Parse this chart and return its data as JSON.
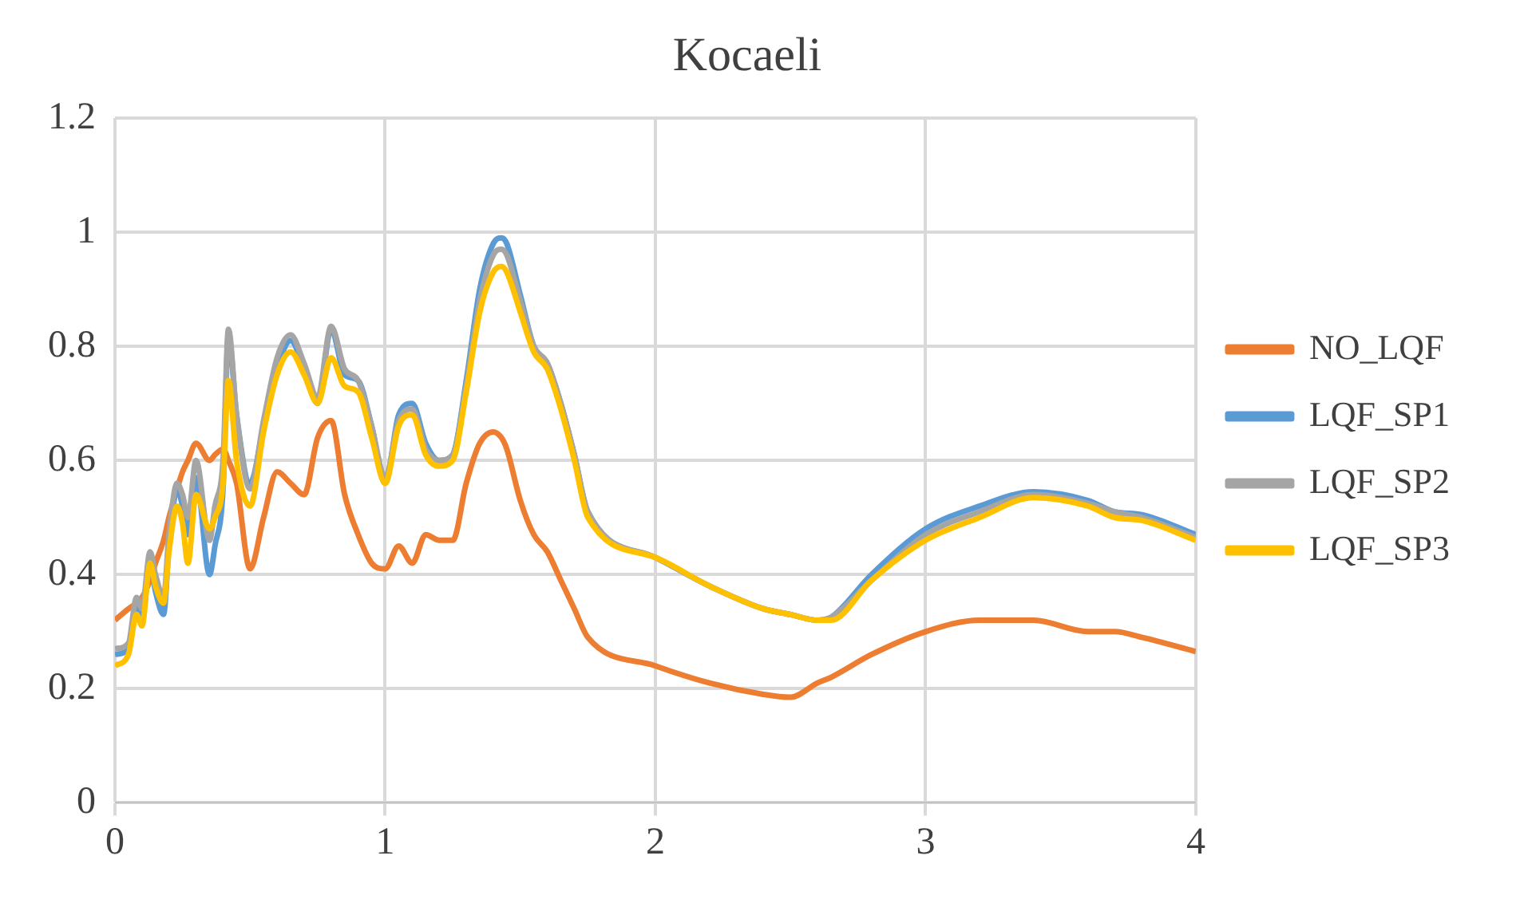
{
  "chart_data": {
    "type": "line",
    "title": "Kocaeli",
    "x": [
      0,
      0.05,
      0.08,
      0.1,
      0.13,
      0.15,
      0.18,
      0.2,
      0.23,
      0.25,
      0.27,
      0.3,
      0.35,
      0.37,
      0.4,
      0.42,
      0.45,
      0.5,
      0.55,
      0.6,
      0.65,
      0.7,
      0.75,
      0.8,
      0.85,
      0.9,
      0.95,
      1.0,
      1.05,
      1.1,
      1.15,
      1.2,
      1.25,
      1.3,
      1.35,
      1.4,
      1.43,
      1.45,
      1.5,
      1.55,
      1.6,
      1.65,
      1.7,
      1.75,
      2.0,
      2.2,
      2.4,
      2.5,
      2.6,
      2.65,
      2.8,
      3.0,
      3.2,
      3.4,
      3.6,
      3.7,
      3.8,
      4.0
    ],
    "series": [
      {
        "name": "NO_LQF",
        "color": "#ed7d31",
        "values": [
          0.32,
          0.34,
          0.35,
          0.36,
          0.39,
          0.42,
          0.46,
          0.5,
          0.55,
          0.58,
          0.6,
          0.63,
          0.6,
          0.61,
          0.62,
          0.6,
          0.56,
          0.41,
          0.5,
          0.58,
          0.56,
          0.54,
          0.64,
          0.67,
          0.54,
          0.47,
          0.42,
          0.41,
          0.45,
          0.42,
          0.47,
          0.46,
          0.46,
          0.56,
          0.63,
          0.65,
          0.64,
          0.62,
          0.53,
          0.47,
          0.44,
          0.39,
          0.34,
          0.29,
          0.24,
          0.21,
          0.19,
          0.185,
          0.21,
          0.22,
          0.26,
          0.3,
          0.32,
          0.32,
          0.3,
          0.3,
          0.29,
          0.265
        ]
      },
      {
        "name": "LQF_SP1",
        "color": "#5b9bd5",
        "values": [
          0.26,
          0.27,
          0.35,
          0.32,
          0.42,
          0.37,
          0.33,
          0.45,
          0.55,
          0.52,
          0.47,
          0.57,
          0.4,
          0.45,
          0.55,
          0.82,
          0.68,
          0.56,
          0.66,
          0.76,
          0.81,
          0.76,
          0.7,
          0.83,
          0.75,
          0.74,
          0.66,
          0.56,
          0.68,
          0.7,
          0.63,
          0.6,
          0.61,
          0.74,
          0.9,
          0.98,
          0.99,
          0.98,
          0.89,
          0.8,
          0.77,
          0.7,
          0.61,
          0.51,
          0.43,
          0.38,
          0.34,
          0.33,
          0.32,
          0.325,
          0.4,
          0.48,
          0.52,
          0.545,
          0.53,
          0.51,
          0.505,
          0.47
        ]
      },
      {
        "name": "LQF_SP2",
        "color": "#a5a5a5",
        "values": [
          0.27,
          0.28,
          0.36,
          0.34,
          0.44,
          0.4,
          0.36,
          0.47,
          0.56,
          0.54,
          0.5,
          0.6,
          0.46,
          0.52,
          0.6,
          0.83,
          0.68,
          0.55,
          0.67,
          0.78,
          0.82,
          0.77,
          0.71,
          0.835,
          0.76,
          0.74,
          0.66,
          0.57,
          0.67,
          0.69,
          0.62,
          0.6,
          0.61,
          0.73,
          0.88,
          0.96,
          0.97,
          0.96,
          0.88,
          0.8,
          0.77,
          0.7,
          0.61,
          0.51,
          0.43,
          0.38,
          0.34,
          0.33,
          0.32,
          0.325,
          0.39,
          0.47,
          0.51,
          0.54,
          0.525,
          0.51,
          0.5,
          0.465
        ]
      },
      {
        "name": "LQF_SP3",
        "color": "#ffc000",
        "values": [
          0.24,
          0.26,
          0.33,
          0.31,
          0.42,
          0.38,
          0.35,
          0.44,
          0.52,
          0.49,
          0.42,
          0.54,
          0.48,
          0.5,
          0.56,
          0.74,
          0.6,
          0.52,
          0.65,
          0.75,
          0.79,
          0.75,
          0.7,
          0.78,
          0.73,
          0.72,
          0.64,
          0.56,
          0.66,
          0.68,
          0.61,
          0.59,
          0.6,
          0.72,
          0.86,
          0.93,
          0.94,
          0.93,
          0.86,
          0.79,
          0.76,
          0.69,
          0.6,
          0.5,
          0.43,
          0.38,
          0.34,
          0.33,
          0.32,
          0.32,
          0.39,
          0.46,
          0.5,
          0.535,
          0.52,
          0.5,
          0.495,
          0.46
        ]
      }
    ],
    "xlim": [
      0,
      4
    ],
    "xticks": [
      0,
      1,
      2,
      3,
      4
    ],
    "ylim": [
      0,
      1.2
    ],
    "yticks": [
      0,
      0.2,
      0.4,
      0.6,
      0.8,
      1,
      1.2
    ],
    "grid": true,
    "legend": "right",
    "marker": "none",
    "line_style": "solid"
  }
}
